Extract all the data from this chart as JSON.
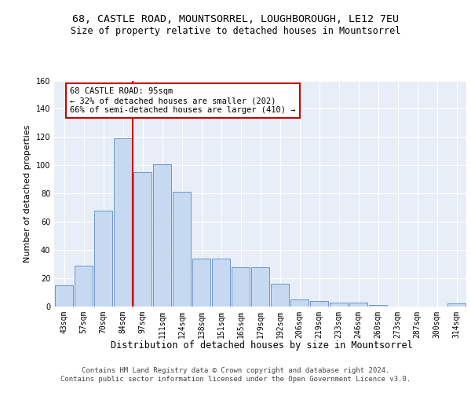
{
  "title_line1": "68, CASTLE ROAD, MOUNTSORREL, LOUGHBOROUGH, LE12 7EU",
  "title_line2": "Size of property relative to detached houses in Mountsorrel",
  "xlabel": "Distribution of detached houses by size in Mountsorrel",
  "ylabel": "Number of detached properties",
  "bin_labels": [
    "43sqm",
    "57sqm",
    "70sqm",
    "84sqm",
    "97sqm",
    "111sqm",
    "124sqm",
    "138sqm",
    "151sqm",
    "165sqm",
    "179sqm",
    "192sqm",
    "206sqm",
    "219sqm",
    "233sqm",
    "246sqm",
    "260sqm",
    "273sqm",
    "287sqm",
    "300sqm",
    "314sqm"
  ],
  "bar_values": [
    15,
    29,
    68,
    119,
    95,
    101,
    81,
    34,
    34,
    28,
    28,
    16,
    5,
    4,
    3,
    3,
    1,
    0,
    0,
    0,
    2
  ],
  "bar_color": "#c6d9f0",
  "bar_edge_color": "#5a8ac6",
  "vline_x_index": 4,
  "vline_color": "#cc0000",
  "annotation_text": "68 CASTLE ROAD: 95sqm\n← 32% of detached houses are smaller (202)\n66% of semi-detached houses are larger (410) →",
  "annotation_box_color": "#ffffff",
  "annotation_box_edge_color": "#cc0000",
  "ylim": [
    0,
    160
  ],
  "yticks": [
    0,
    20,
    40,
    60,
    80,
    100,
    120,
    140,
    160
  ],
  "background_color": "#e8eef7",
  "grid_color": "#ffffff",
  "fig_background_color": "#ffffff",
  "footer_text": "Contains HM Land Registry data © Crown copyright and database right 2024.\nContains public sector information licensed under the Open Government Licence v3.0.",
  "title_fontsize": 9.5,
  "subtitle_fontsize": 8.5,
  "tick_fontsize": 7,
  "ylabel_fontsize": 8,
  "xlabel_fontsize": 8.5,
  "annotation_fontsize": 7.5,
  "footer_fontsize": 6.5
}
